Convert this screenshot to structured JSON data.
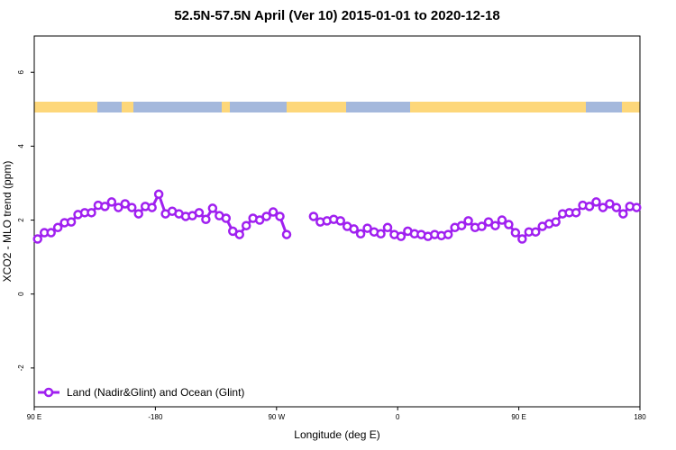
{
  "chart_data": {
    "type": "line",
    "title": "52.5N-57.5N April (Ver 10)   2015-01-01 to 2020-12-18",
    "x_label": "Longitude (deg E)",
    "y_label": "XCO2 - MLO trend (ppm)",
    "xlim": [
      -270,
      180
    ],
    "xticks": [
      {
        "value": -270,
        "label": "90 E"
      },
      -180,
      {
        "value": -90,
        "label": "90 W"
      },
      0,
      {
        "value": 90,
        "label": "90 E"
      },
      180
    ],
    "ylim": [
      -3.05,
      6.98
    ],
    "yticks": [
      -2,
      0,
      2,
      4,
      6
    ],
    "legend": "bottom-left",
    "x": [
      -267.5,
      -262.5,
      -257.5,
      -252.5,
      -247.5,
      -242.5,
      -237.5,
      -232.5,
      -227.5,
      -222.5,
      -217.5,
      -212.5,
      -207.5,
      -202.5,
      -197.5,
      -192.5,
      -187.5,
      -182.5,
      -177.5,
      -172.5,
      -167.5,
      -162.5,
      -157.5,
      -152.5,
      -147.5,
      -142.5,
      -137.5,
      -132.5,
      -127.5,
      -122.5,
      -117.5,
      -112.5,
      -107.5,
      -102.5,
      -97.5,
      -92.5,
      -87.5,
      -82.5,
      -77.5,
      -72.5,
      -67.5,
      -62.5,
      -57.5,
      -52.5,
      -47.5,
      -42.5,
      -37.5,
      -32.5,
      -27.5,
      -22.5,
      -17.5,
      -12.5,
      -7.5,
      -2.5,
      2.5,
      7.5,
      12.5,
      17.5,
      22.5,
      27.5,
      32.5,
      37.5,
      42.5,
      47.5,
      52.5,
      57.5,
      62.5,
      67.5,
      72.5,
      77.5,
      82.5,
      87.5,
      92.5,
      97.5,
      102.5,
      107.5,
      112.5,
      117.5,
      122.5,
      127.5,
      132.5,
      137.5,
      142.5,
      147.5,
      152.5,
      157.5,
      162.5,
      167.5,
      172.5,
      177.5
    ],
    "series": [
      {
        "name": "Land (Nadir&Glint) and Ocean (Glint)",
        "color": "#a020f0",
        "values": [
          1.49,
          1.66,
          1.66,
          1.8,
          1.93,
          1.95,
          2.15,
          2.2,
          2.2,
          2.4,
          2.37,
          2.49,
          2.34,
          2.44,
          2.34,
          2.17,
          2.37,
          2.34,
          2.7,
          2.17,
          2.24,
          2.17,
          2.1,
          2.12,
          2.2,
          2.02,
          2.32,
          2.12,
          2.05,
          1.7,
          1.61,
          1.85,
          2.05,
          2.0,
          2.1,
          2.22,
          2.1,
          1.61,
          null,
          null,
          null,
          2.1,
          1.95,
          1.98,
          2.02,
          1.98,
          1.83,
          1.76,
          1.63,
          1.78,
          1.68,
          1.63,
          1.8,
          1.61,
          1.56,
          1.7,
          1.63,
          1.61,
          1.56,
          1.61,
          1.58,
          1.61,
          1.8,
          1.85,
          1.98,
          1.8,
          1.83,
          1.95,
          1.85,
          2.0,
          1.88,
          1.66,
          1.49,
          1.68,
          1.68,
          1.83,
          1.9,
          1.95,
          2.17,
          2.2,
          2.2,
          2.4,
          2.37,
          2.49,
          2.34,
          2.44,
          2.34,
          2.17,
          2.37,
          2.34
        ]
      }
    ]
  }
}
